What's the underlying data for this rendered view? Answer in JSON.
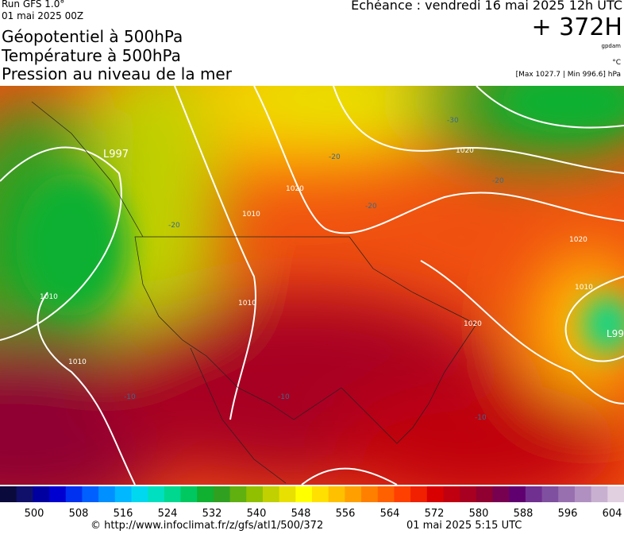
{
  "header": {
    "run": "Run GFS 1.0°",
    "run_date": "01 mai 2025 00Z",
    "titles": [
      "Géopotentiel à 500hPa",
      "Température à 500hPa",
      "Pression au niveau de la mer"
    ],
    "valid": "Echéance : vendredi 16 mai 2025 12h UTC",
    "lead": "+ 372H",
    "unit_geo": "gpdam",
    "unit_temp": "°C",
    "pressure_range": "[Max 1027.7 | Min 996.6] hPa"
  },
  "map": {
    "lows": [
      "L997",
      "L99"
    ],
    "isobars": [
      "1010",
      "1020",
      "1010",
      "1020",
      "1010",
      "1020",
      "1010",
      "1020",
      "1010"
    ],
    "isotherms": [
      "-20",
      "-30",
      "-20",
      "-20",
      "-20",
      "-10",
      "-10",
      "-10"
    ]
  },
  "colorbar": {
    "labels": [
      500,
      508,
      516,
      524,
      532,
      540,
      548,
      556,
      564,
      572,
      580,
      588,
      596,
      604
    ],
    "colors": [
      "#0a0a3c",
      "#10106a",
      "#0000a0",
      "#0000d0",
      "#0030f0",
      "#0060ff",
      "#0090ff",
      "#00b8ff",
      "#00d8f0",
      "#00e0c0",
      "#00d890",
      "#00c860",
      "#10b030",
      "#30a020",
      "#60b010",
      "#90c000",
      "#c0d000",
      "#e8e000",
      "#ffff00",
      "#ffe000",
      "#ffc000",
      "#ffa000",
      "#ff8000",
      "#ff6000",
      "#ff4000",
      "#f02000",
      "#d80000",
      "#c00010",
      "#a80020",
      "#900030",
      "#780050",
      "#600070",
      "#703090",
      "#8050a0",
      "#9870b0",
      "#b090c0",
      "#c8b0d0",
      "#e0d0e0"
    ]
  },
  "footer": {
    "source": "© http://www.infoclimat.fr/z/gfs/atl1/500/372",
    "generated": "01 mai 2025  5:15 UTC"
  }
}
